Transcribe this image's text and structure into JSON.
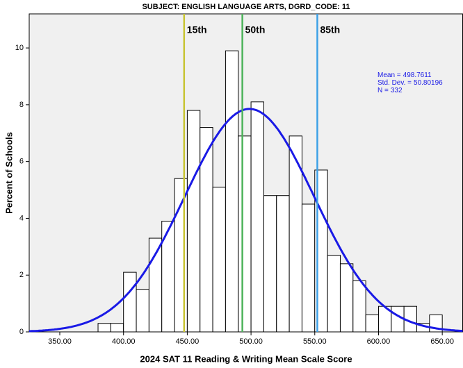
{
  "chart_data": {
    "type": "histogram",
    "title": "SUBJECT: ENGLISH LANGUAGE ARTS, DGRD_CODE: 11",
    "xlabel": "2024 SAT 11 Reading & Writing Mean Scale Score",
    "ylabel": "Percent of Schools",
    "bins": [
      380,
      390,
      400,
      410,
      420,
      430,
      440,
      450,
      460,
      470,
      480,
      490,
      500,
      510,
      520,
      530,
      540,
      550,
      560,
      570,
      580,
      590,
      600,
      610,
      620,
      630,
      640,
      650
    ],
    "values": [
      0.3,
      0.3,
      2.1,
      1.5,
      3.3,
      3.9,
      5.4,
      7.8,
      7.2,
      5.1,
      9.9,
      6.9,
      8.1,
      4.8,
      4.8,
      6.9,
      4.5,
      5.7,
      2.7,
      2.4,
      1.8,
      0.6,
      0.9,
      0.9,
      0.9,
      0.3,
      0.6
    ],
    "color": "#ffffff",
    "curve_color": "#1a1ae6",
    "xlim": [
      326,
      666
    ],
    "ylim": [
      0,
      11.2
    ],
    "xticks": [
      {
        "value": 350,
        "label": "350.00"
      },
      {
        "value": 400,
        "label": "400.00"
      },
      {
        "value": 450,
        "label": "450.00"
      },
      {
        "value": 500,
        "label": "500.00"
      },
      {
        "value": 550,
        "label": "550.00"
      },
      {
        "value": 600,
        "label": "600.00"
      },
      {
        "value": 650,
        "label": "650.00"
      }
    ],
    "yticks": [
      0,
      2,
      4,
      6,
      8,
      10
    ],
    "percentiles": [
      {
        "label": "15th",
        "value": 447.5,
        "color": "#c8c434"
      },
      {
        "label": "50th",
        "value": 493.2,
        "color": "#4cb35a"
      },
      {
        "label": "85th",
        "value": 552,
        "color": "#3ca0e6"
      }
    ],
    "stats": [
      {
        "label": "Mean =",
        "value": 498.7611
      },
      {
        "label": "Std. Dev. =",
        "value": 50.80196
      },
      {
        "label": "N =",
        "value": 332
      }
    ]
  }
}
